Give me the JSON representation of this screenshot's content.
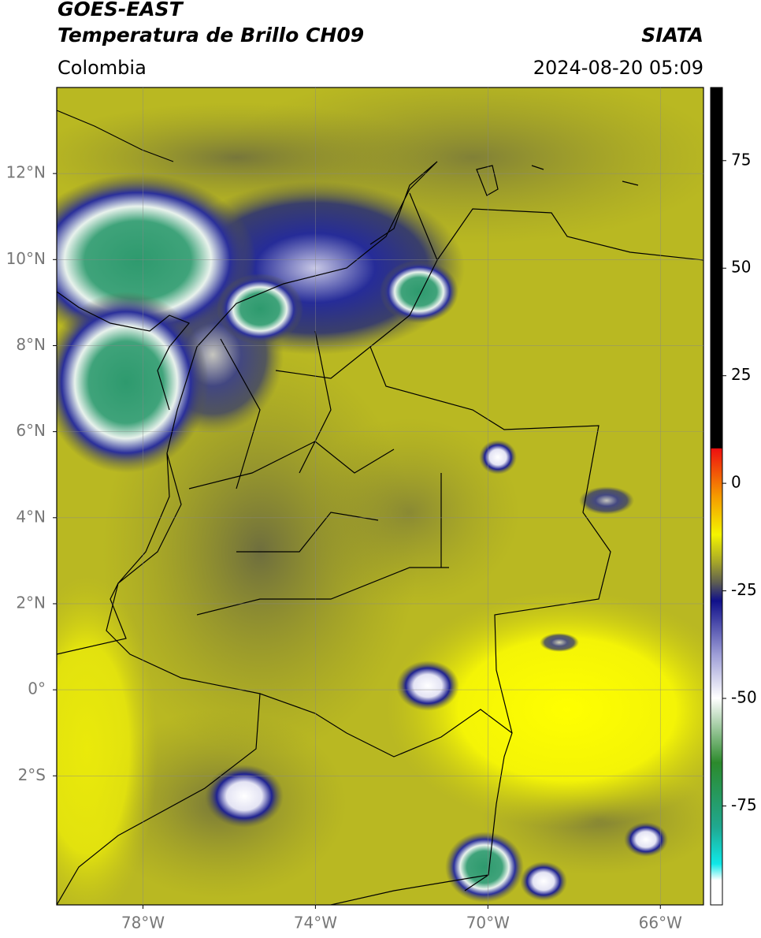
{
  "header": {
    "title": "GOES-EAST",
    "subtitle": "Temperatura de Brillo CH09",
    "region": "Colombia",
    "source": "SIATA",
    "datetime": "2024-08-20 05:09"
  },
  "map": {
    "xlim": [
      -80,
      -65
    ],
    "ylim": [
      -5,
      14
    ],
    "xticks": [
      {
        "value": -78,
        "label": "78°W"
      },
      {
        "value": -74,
        "label": "74°W"
      },
      {
        "value": -70,
        "label": "70°W"
      },
      {
        "value": -66,
        "label": "66°W"
      }
    ],
    "yticks": [
      {
        "value": 12,
        "label": "12°N"
      },
      {
        "value": 10,
        "label": "10°N"
      },
      {
        "value": 8,
        "label": "8°N"
      },
      {
        "value": 6,
        "label": "6°N"
      },
      {
        "value": 4,
        "label": "4°N"
      },
      {
        "value": 2,
        "label": "2°N"
      },
      {
        "value": 0,
        "label": "0°"
      },
      {
        "value": -2,
        "label": "2°S"
      }
    ],
    "grid": true
  },
  "colorbar": {
    "lim": [
      -98,
      92
    ],
    "ticks": [
      75,
      50,
      25,
      0,
      -25,
      -50,
      -75
    ]
  }
}
